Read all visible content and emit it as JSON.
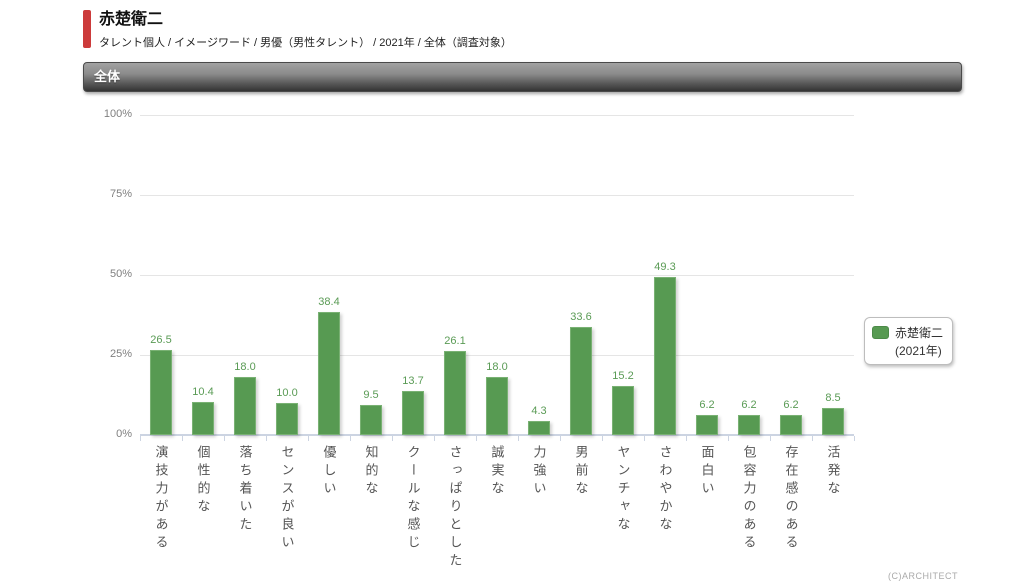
{
  "header": {
    "title": "赤楚衛二",
    "breadcrumb": "タレント個人 / イメージワード / 男優（男性タレント） / 2021年 / 全体（調査対象）",
    "accent_color": "#cc3b3b"
  },
  "section_bar": {
    "label": "全体"
  },
  "legend": {
    "line1": "赤楚衛二",
    "line2": "(2021年)",
    "swatch_color": "#579a52"
  },
  "footer": {
    "copyright": "(C)ARCHITECT"
  },
  "chart_data": {
    "type": "bar",
    "title": "",
    "xlabel": "",
    "ylabel": "",
    "series_name": "赤楚衛二 (2021年)",
    "categories": [
      "演技力がある",
      "個性的な",
      "落ち着いた",
      "センスが良い",
      "優しい",
      "知的な",
      "クールな感じ",
      "さっぱりとした",
      "誠実な",
      "力強い",
      "男前な",
      "ヤンチャな",
      "さわやかな",
      "面白い",
      "包容力のある",
      "存在感のある",
      "活発な"
    ],
    "values": [
      26.5,
      10.4,
      18.0,
      10.0,
      38.4,
      9.5,
      13.7,
      26.1,
      18.0,
      4.3,
      33.6,
      15.2,
      49.3,
      6.2,
      6.2,
      6.2,
      8.5
    ],
    "value_labels": [
      "26.5",
      "10.4",
      "18.0",
      "10.0",
      "38.4",
      "9.5",
      "13.7",
      "26.1",
      "18.0",
      "4.3",
      "33.6",
      "15.2",
      "49.3",
      "6.2",
      "6.2",
      "6.2",
      "8.5"
    ],
    "ylim": [
      0,
      100
    ],
    "y_ticks": [
      0,
      25,
      50,
      75,
      100
    ],
    "y_tick_labels": [
      "0%",
      "25%",
      "50%",
      "75%",
      "100%"
    ],
    "grid": true,
    "legend_position": "right",
    "bar_color": "#579a52",
    "value_label_color": "#5a9b55"
  }
}
